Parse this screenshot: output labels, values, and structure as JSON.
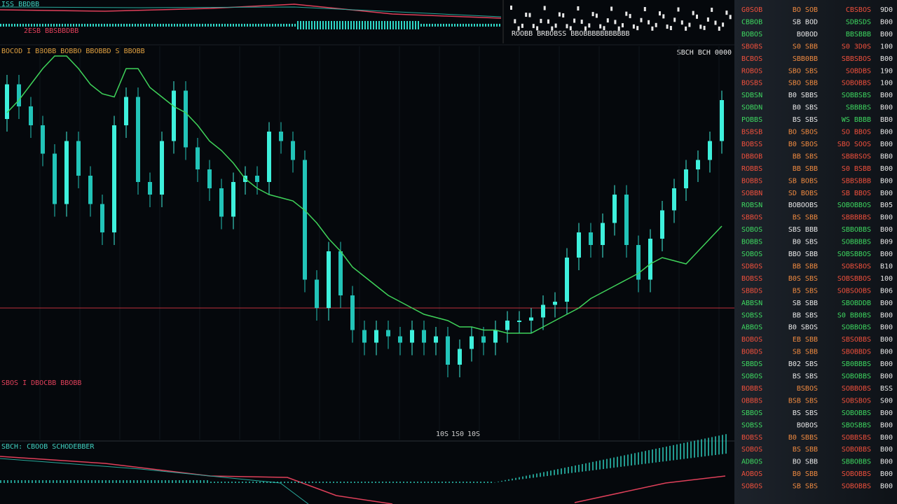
{
  "header": {
    "ticker_line": "ISS BBDBB",
    "indicator_line": "2ESB BBSBBDBB",
    "mini_line": "ROOBB BRBOBSS BBOBBBBBBBBBBB",
    "chart_line": "BOCOD I BBOBB BOBBO BBOBBD S BBOBB",
    "price_tag": "SBCH BCH 0000"
  },
  "chart": {
    "type": "candlestick",
    "ylim": [
      0,
      100
    ],
    "up_color": "#3ef0dc",
    "down_color": "#22c4b8",
    "ma_color": "#3fd35a",
    "open": [
      80,
      91,
      84,
      78,
      69,
      53,
      73,
      62,
      53,
      44,
      78,
      87,
      60,
      56,
      73,
      89,
      71,
      64,
      58,
      49,
      60,
      62,
      60,
      76,
      73,
      67,
      29,
      20,
      38,
      24,
      13,
      9,
      13,
      11,
      9,
      13,
      9,
      11,
      2,
      7,
      11,
      9,
      13,
      16,
      16,
      17,
      21,
      22,
      36,
      44,
      40,
      47,
      56,
      40,
      29,
      42,
      51,
      58,
      64,
      67,
      73
    ],
    "high": [
      94,
      94,
      87,
      81,
      72,
      76,
      76,
      65,
      56,
      81,
      90,
      90,
      63,
      76,
      92,
      92,
      74,
      67,
      61,
      63,
      65,
      65,
      79,
      79,
      76,
      70,
      32,
      41,
      41,
      27,
      16,
      16,
      16,
      14,
      16,
      16,
      14,
      14,
      10,
      14,
      14,
      16,
      19,
      19,
      20,
      24,
      25,
      39,
      47,
      47,
      50,
      59,
      59,
      43,
      45,
      54,
      61,
      67,
      70,
      76,
      89
    ],
    "low": [
      76,
      80,
      74,
      65,
      49,
      49,
      58,
      49,
      40,
      40,
      74,
      56,
      52,
      52,
      69,
      67,
      60,
      54,
      45,
      45,
      56,
      56,
      56,
      69,
      63,
      25,
      16,
      16,
      20,
      9,
      5,
      5,
      7,
      5,
      5,
      5,
      5,
      -2,
      -2,
      3,
      5,
      5,
      9,
      12,
      12,
      13,
      17,
      18,
      32,
      36,
      36,
      43,
      36,
      25,
      25,
      38,
      47,
      54,
      60,
      63,
      69
    ],
    "close": [
      91,
      84,
      78,
      69,
      53,
      73,
      62,
      53,
      44,
      78,
      87,
      60,
      56,
      73,
      89,
      71,
      64,
      58,
      49,
      60,
      62,
      60,
      76,
      73,
      67,
      29,
      20,
      38,
      24,
      13,
      9,
      13,
      11,
      9,
      13,
      9,
      11,
      2,
      7,
      11,
      9,
      13,
      16,
      16,
      17,
      21,
      22,
      36,
      44,
      40,
      47,
      56,
      40,
      29,
      42,
      51,
      58,
      64,
      67,
      73,
      86
    ],
    "ma": [
      82,
      86,
      91,
      96,
      100,
      100,
      96,
      91,
      88,
      87,
      96,
      96,
      90,
      87,
      84,
      82,
      78,
      73,
      70,
      66,
      61,
      58,
      56,
      55,
      54,
      51,
      47,
      42,
      38,
      33,
      30,
      27,
      24,
      22,
      20,
      18,
      17,
      16,
      14,
      14,
      13,
      13,
      12,
      12,
      12,
      14,
      16,
      18,
      20,
      23,
      25,
      27,
      29,
      31,
      34,
      36,
      35,
      34,
      38,
      42,
      46
    ],
    "marker": "SBOS I DBOCBB BBOBB",
    "time_labels": [
      "10S",
      "1S0",
      "10S"
    ]
  },
  "lower": {
    "label": "SBCH: CBOOB SCHODEBBER"
  },
  "book": {
    "rows": [
      [
        "G0SOB",
        "BO SOB",
        "CBSBOS",
        "9D0",
        "sell"
      ],
      [
        "CBBOB",
        "SB BOD",
        "SDBSDS",
        "B00",
        "buy"
      ],
      [
        "BOBOS",
        "BOBOD",
        "BBSBBB",
        "B00",
        "buy"
      ],
      [
        "SBOBS",
        "S0 SBB",
        "S0 3D0S",
        "100",
        "sell"
      ],
      [
        "BCBOS",
        "SBB0BB",
        "SBBSBOS",
        "B00",
        "sell"
      ],
      [
        "ROBOS",
        "SBO SBS",
        "SOBDBS",
        "190",
        "sell"
      ],
      [
        "BOSBS",
        "SBO SBB",
        "SOBOBBS",
        "100",
        "sell"
      ],
      [
        "SDBSN",
        "B0 SBBS",
        "SOBBSBS",
        "B00",
        "buy"
      ],
      [
        "SOBDN",
        "B0 SBS",
        "SBBBBS",
        "B00",
        "buy"
      ],
      [
        "POBBS",
        "BS SBS",
        "WS BBBB",
        "BB0",
        "buy"
      ],
      [
        "BSBSB",
        "BO SBOS",
        "SO BBOS",
        "B00",
        "sell"
      ],
      [
        "BOBSS",
        "B0 SBOS",
        "SBO SOOS",
        "B00",
        "sell"
      ],
      [
        "DBBOB",
        "BB SBS",
        "SBBBSOS",
        "BB0",
        "sell"
      ],
      [
        "ROBBS",
        "BB SBB",
        "S0 BSBB",
        "B00",
        "sell"
      ],
      [
        "BOBBS",
        "SB BOBS",
        "SBBSBBB",
        "B00",
        "sell"
      ],
      [
        "SOBBN",
        "SD BOBS",
        "SB BBOS",
        "B00",
        "sell"
      ],
      [
        "ROBSN",
        "BOBOOBS",
        "SOBOBBOS",
        "B05",
        "buy"
      ],
      [
        "SBBOS",
        "BS SBB",
        "SBBBBBS",
        "B00",
        "sell"
      ],
      [
        "SOBOS",
        "SBS BBB",
        "SBBOBBS",
        "B00",
        "buy"
      ],
      [
        "BOBBS",
        "B0 SBS",
        "SOBBBBS",
        "B09",
        "buy"
      ],
      [
        "SOBOS",
        "BBO SBB",
        "SOBSBBOS",
        "B00",
        "buy"
      ],
      [
        "SDBOS",
        "BB SBB",
        "SOBSBOS",
        "B10",
        "sell"
      ],
      [
        "BOBSS",
        "B0S SBS",
        "SOBSBBOS",
        "100",
        "sell"
      ],
      [
        "SBBDS",
        "B5 SBS",
        "SOBSOOBS",
        "B06",
        "sell"
      ],
      [
        "ABBSN",
        "SB SBB",
        "SBOBDDB",
        "B00",
        "buy"
      ],
      [
        "SOBSS",
        "BB SBS",
        "S0 BB0BS",
        "B00",
        "buy"
      ],
      [
        "ABBOS",
        "B0 SBOS",
        "SOBBOBS",
        "B00",
        "buy"
      ],
      [
        "BOBOS",
        "EB SBB",
        "SBSOBBS",
        "B00",
        "sell"
      ],
      [
        "BOBDS",
        "SB SBB",
        "SBOBBDS",
        "B00",
        "sell"
      ],
      [
        "SBBDS",
        "B02 SBS",
        "SB0BBBS",
        "B00",
        "buy"
      ],
      [
        "SOBOS",
        "BS SBS",
        "SOBOBBS",
        "B00",
        "buy"
      ],
      [
        "BOBBS",
        "BSBOS",
        "SOBBOBS",
        "BSS",
        "sell"
      ],
      [
        "OBBBS",
        "BSB SBS",
        "SOBSBOS",
        "S00",
        "sell"
      ],
      [
        "SBBOS",
        "BS SBS",
        "SOBOBBS",
        "B00",
        "buy"
      ],
      [
        "SOBSS",
        "BOBOS",
        "SBOSBBS",
        "B00",
        "buy"
      ],
      [
        "BOBSS",
        "B0 SBBS",
        "SOBBSBS",
        "B00",
        "sell"
      ],
      [
        "SOBOS",
        "BS SBB",
        "SOBOBBS",
        "B00",
        "sell"
      ],
      [
        "ADBOS",
        "BO SBB",
        "SBBOBBS",
        "B00",
        "buy"
      ],
      [
        "AOBOS",
        "B0 SBB",
        "SOBOBBS",
        "B00",
        "sell"
      ],
      [
        "SOBOS",
        "SB SBS",
        "SOBOBBS",
        "B00",
        "sell"
      ]
    ]
  }
}
